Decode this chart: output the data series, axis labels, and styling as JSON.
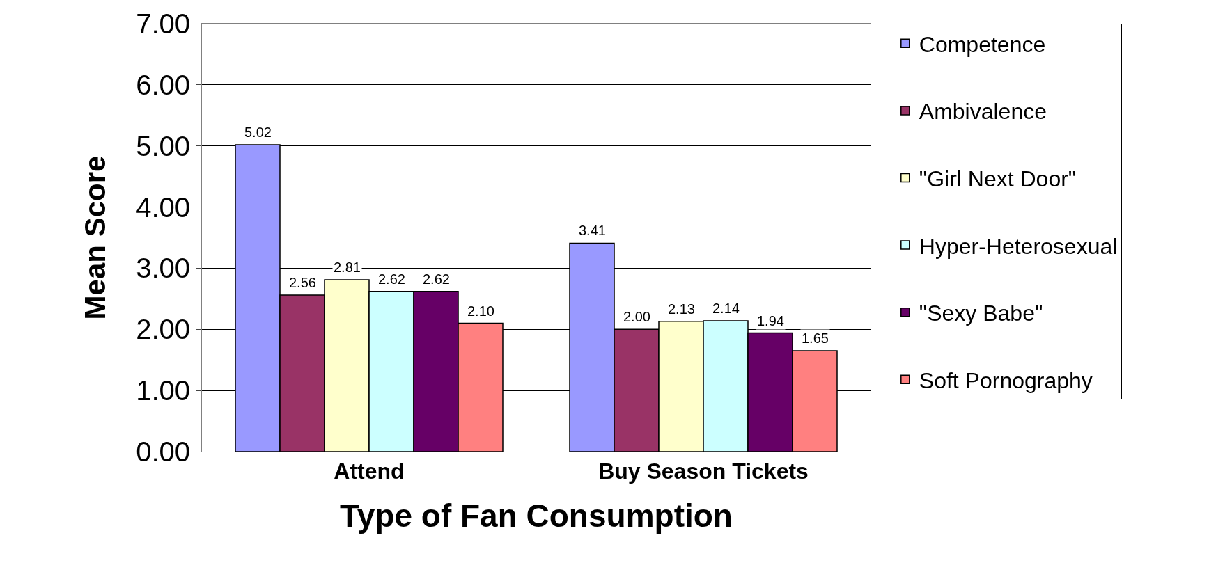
{
  "chart_data": {
    "type": "bar",
    "xlabel": "Type of Fan Consumption",
    "ylabel": "Mean Score",
    "categories": [
      "Attend",
      "Buy Season Tickets"
    ],
    "series": [
      {
        "name": "Competence",
        "color": "#9999ff",
        "values": [
          5.02,
          3.41
        ],
        "value_labels": [
          "5.02",
          "3.41"
        ]
      },
      {
        "name": "Ambivalence",
        "color": "#993366",
        "values": [
          2.56,
          2.0
        ],
        "value_labels": [
          "2.56",
          "2.00"
        ]
      },
      {
        "name": "\"Girl Next Door\"",
        "color": "#ffffcc",
        "values": [
          2.81,
          2.13
        ],
        "value_labels": [
          "2.81",
          "2.13"
        ]
      },
      {
        "name": "Hyper-Heterosexual",
        "color": "#ccffff",
        "values": [
          2.62,
          2.14
        ],
        "value_labels": [
          "2.62",
          "2.14"
        ]
      },
      {
        "name": "\"Sexy Babe\"",
        "color": "#660066",
        "values": [
          2.62,
          1.94
        ],
        "value_labels": [
          "2.62",
          "1.94"
        ]
      },
      {
        "name": "Soft Pornography",
        "color": "#ff8080",
        "values": [
          2.1,
          1.65
        ],
        "value_labels": [
          "2.10",
          "1.65"
        ]
      }
    ],
    "ylim": [
      0,
      7
    ],
    "yticks": [
      {
        "value": 0,
        "label": "0.00"
      },
      {
        "value": 1,
        "label": "1.00"
      },
      {
        "value": 2,
        "label": "2.00"
      },
      {
        "value": 3,
        "label": "3.00"
      },
      {
        "value": 4,
        "label": "4.00"
      },
      {
        "value": 5,
        "label": "5.00"
      },
      {
        "value": 6,
        "label": "6.00"
      },
      {
        "value": 7,
        "label": "7.00"
      }
    ],
    "grid": "y",
    "legend": "right"
  }
}
